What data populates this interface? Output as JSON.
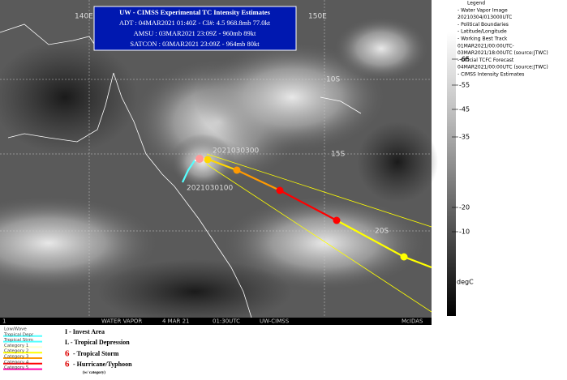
{
  "title_box": {
    "lines": [
      "UW - CIMSS Experimental TC Intensity Estimates",
      "ADT : 04MAR2021 01:40Z  -  CI#: 4.5   968.8mb   77.0kt",
      "AMSU : 03MAR2021 23:09Z  -  960mb   89kt",
      "SATCON : 03MAR2021 23:09Z  -  964mb   80kt"
    ]
  },
  "map_labels": {
    "lon_140": "140E",
    "lon_150": "150E",
    "lat_10": "10S",
    "lat_15": "15S",
    "lat_20": "20S",
    "fix_1": "2021030300",
    "fix_2": "2021030100"
  },
  "colorbar": {
    "ticks": [
      "-65",
      "-55",
      "-45",
      "-35",
      "-20",
      "-10"
    ],
    "unit": "degC"
  },
  "legend_top": [
    "Legend",
    "- Water Vapor Image",
    "20210304/013000UTC",
    "- Political Boundaries",
    "- Latitude/Longitude",
    "- Working Best Track",
    "01MAR2021/00:00UTC-",
    "03MAR2021/18:00UTC  (source:JTWC)",
    "- Official TCFC Forecast",
    "04MAR2021/00:00UTC  (source:JTWC)",
    "- CIMSS Intensity Estimates"
  ],
  "status_bar": [
    "1",
    "WATER VAPOR",
    "4 MAR 21",
    "01:30UTC",
    "UW-CIMSS",
    "McIDAS"
  ],
  "track_legend": [
    "Low/Wave",
    "Tropical Depr",
    "Tropical Strm",
    "Category 1",
    "Category 2",
    "Category 3",
    "Category 4",
    "Category 5"
  ],
  "symbol_legend": [
    "I - Invest Area",
    "L - Tropical Depression",
    "- Tropical Storm",
    "- Hurricane/Typhoon",
    "(w/ category)"
  ]
}
